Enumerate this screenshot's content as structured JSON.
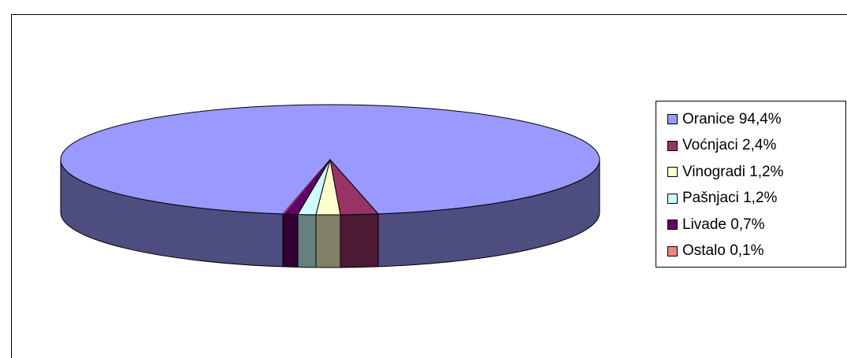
{
  "chart_data": {
    "type": "pie",
    "title": "",
    "legend_position": "right",
    "slices": [
      {
        "label": "Oranice 94,4%",
        "value": 94.4,
        "top_color": "#9999ff",
        "side_color": "#4d4d80"
      },
      {
        "label": "Voćnjaci 2,4%",
        "value": 2.4,
        "top_color": "#993366",
        "side_color": "#4d1a33"
      },
      {
        "label": "Vinogradi 1,2%",
        "value": 1.2,
        "top_color": "#ffffcc",
        "side_color": "#808066"
      },
      {
        "label": "Pašnjaci 1,2%",
        "value": 1.2,
        "top_color": "#ccffff",
        "side_color": "#668080"
      },
      {
        "label": "Livade 0,7%",
        "value": 0.7,
        "top_color": "#660066",
        "side_color": "#330033"
      },
      {
        "label": "Ostalo 0,1%",
        "value": 0.1,
        "top_color": "#ff8080",
        "side_color": "#804040"
      }
    ]
  }
}
